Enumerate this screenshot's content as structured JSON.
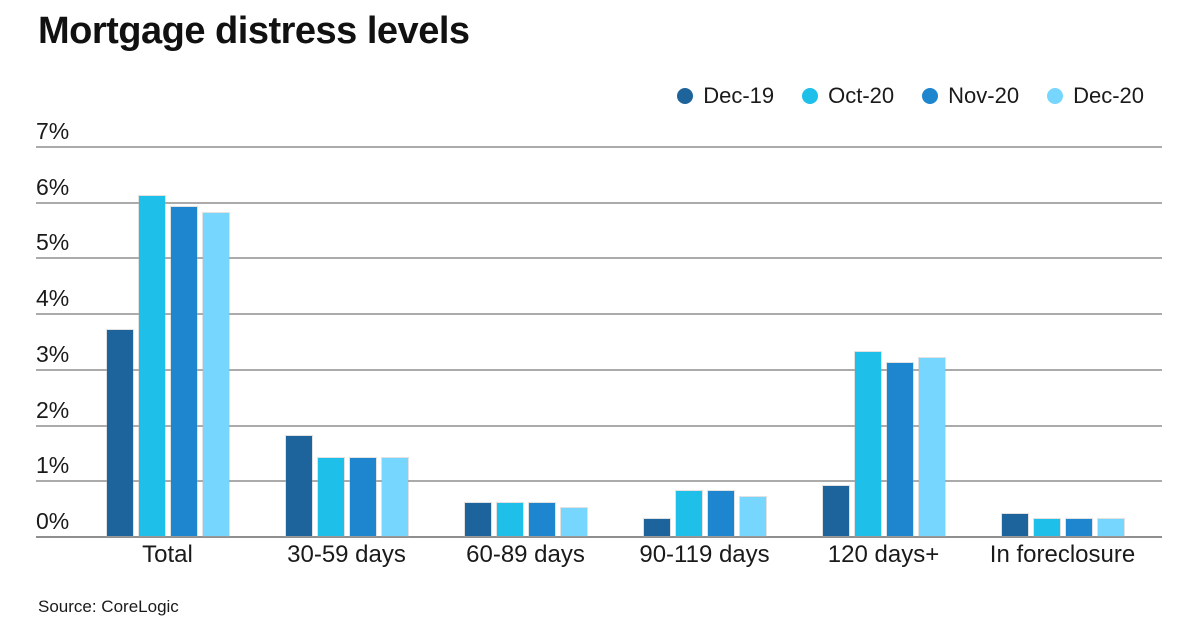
{
  "title": "Mortgage distress levels",
  "source": "Source: CoreLogic",
  "colors": {
    "background": "#ffffff",
    "gridline": "#ababab",
    "baseline": "#8f8f8f",
    "text": "#1a1a1a"
  },
  "chart_data": {
    "type": "bar",
    "title": "Mortgage distress levels",
    "categories": [
      "Total",
      "30-59 days",
      "60-89 days",
      "90-119 days",
      "120 days+",
      "In foreclosure"
    ],
    "series": [
      {
        "name": "Dec-19",
        "color": "#1e649c",
        "values": [
          3.7,
          1.8,
          0.6,
          0.3,
          0.9,
          0.4
        ]
      },
      {
        "name": "Oct-20",
        "color": "#1ebfe8",
        "values": [
          6.1,
          1.4,
          0.6,
          0.8,
          3.3,
          0.3
        ]
      },
      {
        "name": "Nov-20",
        "color": "#1e86cf",
        "values": [
          5.9,
          1.4,
          0.6,
          0.8,
          3.1,
          0.3
        ]
      },
      {
        "name": "Dec-20",
        "color": "#76d6fe",
        "values": [
          5.8,
          1.4,
          0.5,
          0.7,
          3.2,
          0.3
        ]
      }
    ],
    "ylim": [
      0,
      7
    ],
    "ytick_labels": [
      "7%",
      "6%",
      "5%",
      "4%",
      "3%",
      "2%",
      "1%",
      "0%"
    ],
    "ytick_values": [
      7,
      6,
      5,
      4,
      3,
      2,
      1,
      0
    ],
    "grid": true,
    "legend_position": "top-right",
    "xlabel": "",
    "ylabel": ""
  }
}
